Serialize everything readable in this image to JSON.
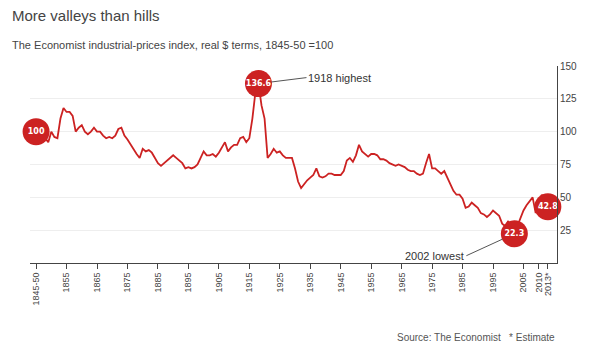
{
  "chart_data": {
    "type": "line",
    "title": "More valleys than hills",
    "subtitle": "The Economist industrial-prices index, real $ terms, 1845-50 =100",
    "source": "Source: The Economist   * Estimate",
    "color": "#cc2222",
    "x": [
      1845,
      1846,
      1847,
      1848,
      1849,
      1850,
      1851,
      1852,
      1853,
      1854,
      1855,
      1856,
      1857,
      1858,
      1859,
      1860,
      1861,
      1862,
      1863,
      1864,
      1865,
      1866,
      1867,
      1868,
      1869,
      1870,
      1871,
      1872,
      1873,
      1874,
      1875,
      1876,
      1877,
      1878,
      1879,
      1880,
      1881,
      1882,
      1883,
      1884,
      1885,
      1886,
      1887,
      1888,
      1889,
      1890,
      1891,
      1892,
      1893,
      1894,
      1895,
      1896,
      1897,
      1898,
      1899,
      1900,
      1901,
      1902,
      1903,
      1904,
      1905,
      1906,
      1907,
      1908,
      1909,
      1910,
      1911,
      1912,
      1913,
      1914,
      1915,
      1916,
      1917,
      1918,
      1919,
      1920,
      1921,
      1922,
      1923,
      1924,
      1925,
      1926,
      1927,
      1928,
      1929,
      1930,
      1931,
      1932,
      1933,
      1934,
      1935,
      1936,
      1937,
      1938,
      1939,
      1940,
      1941,
      1942,
      1943,
      1944,
      1945,
      1946,
      1947,
      1948,
      1949,
      1950,
      1951,
      1952,
      1953,
      1954,
      1955,
      1956,
      1957,
      1958,
      1959,
      1960,
      1961,
      1962,
      1963,
      1964,
      1965,
      1966,
      1967,
      1968,
      1969,
      1970,
      1971,
      1972,
      1973,
      1974,
      1975,
      1976,
      1977,
      1978,
      1979,
      1980,
      1981,
      1982,
      1983,
      1984,
      1985,
      1986,
      1987,
      1988,
      1989,
      1990,
      1991,
      1992,
      1993,
      1994,
      1995,
      1996,
      1997,
      1998,
      1999,
      2000,
      2001,
      2002,
      2003,
      2004,
      2005,
      2006,
      2007,
      2008,
      2009,
      2010,
      2011,
      2012,
      2013
    ],
    "values": [
      100,
      98,
      105,
      95,
      92,
      100,
      96,
      95,
      110,
      118,
      115,
      115,
      112,
      100,
      103,
      105,
      100,
      98,
      100,
      103,
      100,
      100,
      97,
      95,
      96,
      95,
      97,
      102,
      103,
      97,
      94,
      90,
      87,
      83,
      80,
      87,
      85,
      86,
      84,
      80,
      76,
      74,
      76,
      78,
      80,
      82,
      80,
      78,
      76,
      72,
      73,
      72,
      73,
      75,
      80,
      85,
      82,
      82,
      83,
      81,
      84,
      88,
      92,
      85,
      88,
      90,
      90,
      95,
      96,
      92,
      95,
      110,
      130,
      136.6,
      120,
      110,
      80,
      83,
      87,
      84,
      85,
      82,
      80,
      80,
      80,
      72,
      62,
      57,
      60,
      63,
      65,
      67,
      72,
      66,
      65,
      66,
      68,
      68,
      67,
      67,
      67,
      70,
      78,
      80,
      77,
      82,
      90,
      85,
      83,
      81,
      83,
      83,
      82,
      79,
      79,
      78,
      76,
      75,
      74,
      75,
      74,
      73,
      71,
      70,
      70,
      68,
      67,
      68,
      76,
      83,
      72,
      72,
      70,
      68,
      70,
      65,
      60,
      55,
      52,
      52,
      49,
      42,
      43,
      46,
      44,
      42,
      38,
      37,
      35,
      37,
      40,
      38,
      36,
      30,
      28,
      32,
      26,
      22.3,
      28,
      35,
      40,
      44,
      47,
      50,
      38,
      46,
      52,
      48,
      42.8
    ],
    "xlim": [
      1843,
      2016
    ],
    "xticks": [
      {
        "value": 1845,
        "label": "1845-50"
      },
      1855,
      1865,
      1875,
      1885,
      1895,
      1905,
      1915,
      1925,
      1935,
      1945,
      1955,
      1965,
      1975,
      1985,
      1995,
      2005,
      2010,
      {
        "value": 2013,
        "label": "2013*"
      }
    ],
    "ylim": [
      0,
      150
    ],
    "yticks": [
      25,
      50,
      75,
      100,
      125,
      150
    ],
    "grid": true,
    "highlights": [
      {
        "x": 1845,
        "y": 100,
        "label": "100"
      },
      {
        "x": 1918,
        "y": 136.6,
        "label": "136.6",
        "text": "1918 highest"
      },
      {
        "x": 2002,
        "y": 22.3,
        "label": "22.3",
        "text": "2002 lowest"
      },
      {
        "x": 2013,
        "y": 42.8,
        "label": "42.8"
      }
    ]
  }
}
